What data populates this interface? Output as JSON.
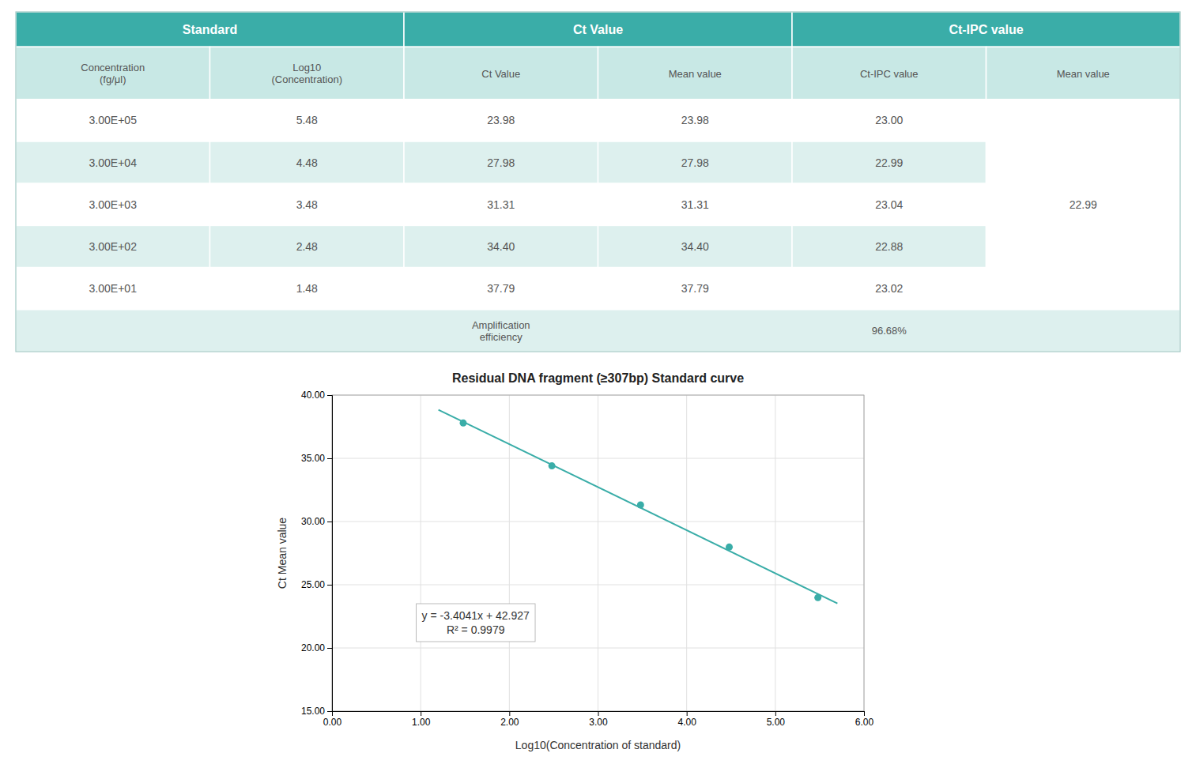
{
  "chart_data": [
    {
      "type": "table",
      "color": "#3aada8",
      "columns": [
        {
          "group": "Standard",
          "label": "Concentration\n(fg/μl)"
        },
        {
          "group": "Standard",
          "label": "Log10\n(Concentration)"
        },
        {
          "group": "Ct Value",
          "label": "Ct Value"
        },
        {
          "group": "Ct Value",
          "label": "Mean value"
        },
        {
          "group": "Ct-IPC value",
          "label": "Ct-IPC value"
        },
        {
          "group": "Ct-IPC value",
          "label": "Mean value"
        }
      ],
      "rows": [
        [
          "3.00E+05",
          "5.48",
          "23.98",
          "23.98",
          "23.00",
          null
        ],
        [
          "3.00E+04",
          "4.48",
          "27.98",
          "27.98",
          "22.99",
          null
        ],
        [
          "3.00E+03",
          "3.48",
          "31.31",
          "31.31",
          "23.04",
          "22.99"
        ],
        [
          "3.00E+02",
          "2.48",
          "34.40",
          "34.40",
          "22.88",
          null
        ],
        [
          "3.00E+01",
          "1.48",
          "37.79",
          "37.79",
          "23.02",
          null
        ]
      ],
      "footer": [
        null,
        null,
        "Amplification\nefficiency",
        null,
        "96.68%",
        null
      ]
    },
    {
      "type": "scatter",
      "title": "Residual DNA fragment (≥307bp) Standard curve",
      "x_label": "Log10(Concentration of standard)",
      "y_label": "Ct Mean value",
      "x": [
        1.48,
        2.48,
        3.48,
        4.48,
        5.48
      ],
      "values": [
        37.79,
        34.4,
        31.31,
        27.98,
        23.98
      ],
      "color": "#3aada8",
      "trend_line": {
        "x": [
          1.2,
          5.7
        ],
        "values": [
          38.84208,
          23.52363
        ]
      },
      "annotations": [
        "y = -3.4041x + 42.927",
        "R² = 0.9979"
      ],
      "xlim": [
        0.0,
        6.0
      ],
      "ylim": [
        15.0,
        40.0
      ],
      "xticks": [
        {
          "value": 0,
          "label": "0.00"
        },
        {
          "value": 1,
          "label": "1.00"
        },
        {
          "value": 2,
          "label": "2.00"
        },
        {
          "value": 3,
          "label": "3.00"
        },
        {
          "value": 4,
          "label": "4.00"
        },
        {
          "value": 5,
          "label": "5.00"
        },
        {
          "value": 6,
          "label": "6.00"
        }
      ],
      "yticks": [
        {
          "value": 15,
          "label": "15.00"
        },
        {
          "value": 20,
          "label": "20.00"
        },
        {
          "value": 25,
          "label": "25.00"
        },
        {
          "value": 30,
          "label": "30.00"
        },
        {
          "value": 35,
          "label": "35.00"
        },
        {
          "value": 40,
          "label": "40.00"
        }
      ],
      "grid": true
    }
  ]
}
